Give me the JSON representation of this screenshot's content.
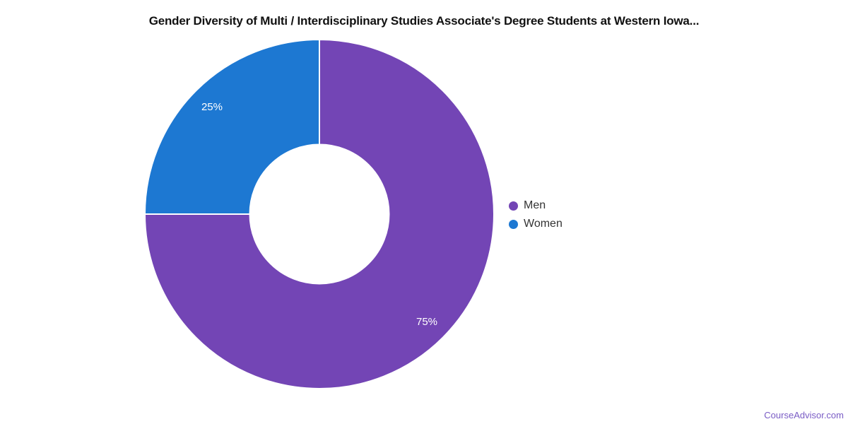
{
  "title": "Gender Diversity of Multi / Interdisciplinary Studies Associate's Degree Students at Western Iowa...",
  "legend": {
    "position": "right",
    "items": [
      {
        "label": "Men"
      },
      {
        "label": "Women"
      }
    ]
  },
  "footer": {
    "link_label": "CourseAdvisor.com",
    "color": "#7a5cc5"
  },
  "chart_data": {
    "type": "pie",
    "subtype": "donut",
    "title": "Gender Diversity of Multi / Interdisciplinary Studies Associate's Degree Students at Western Iowa...",
    "categories": [
      "Men",
      "Women"
    ],
    "values": [
      75,
      25
    ],
    "unit": "%",
    "data_labels": [
      "75%",
      "25%"
    ],
    "colors": [
      "#7345b5",
      "#1d78d2"
    ],
    "label_text_color": "#ffffff",
    "slice_border_color": "#ffffff",
    "legend_position": "right",
    "start_angle": "top",
    "direction": "clockwise",
    "inner_radius_ratio": 0.4
  }
}
